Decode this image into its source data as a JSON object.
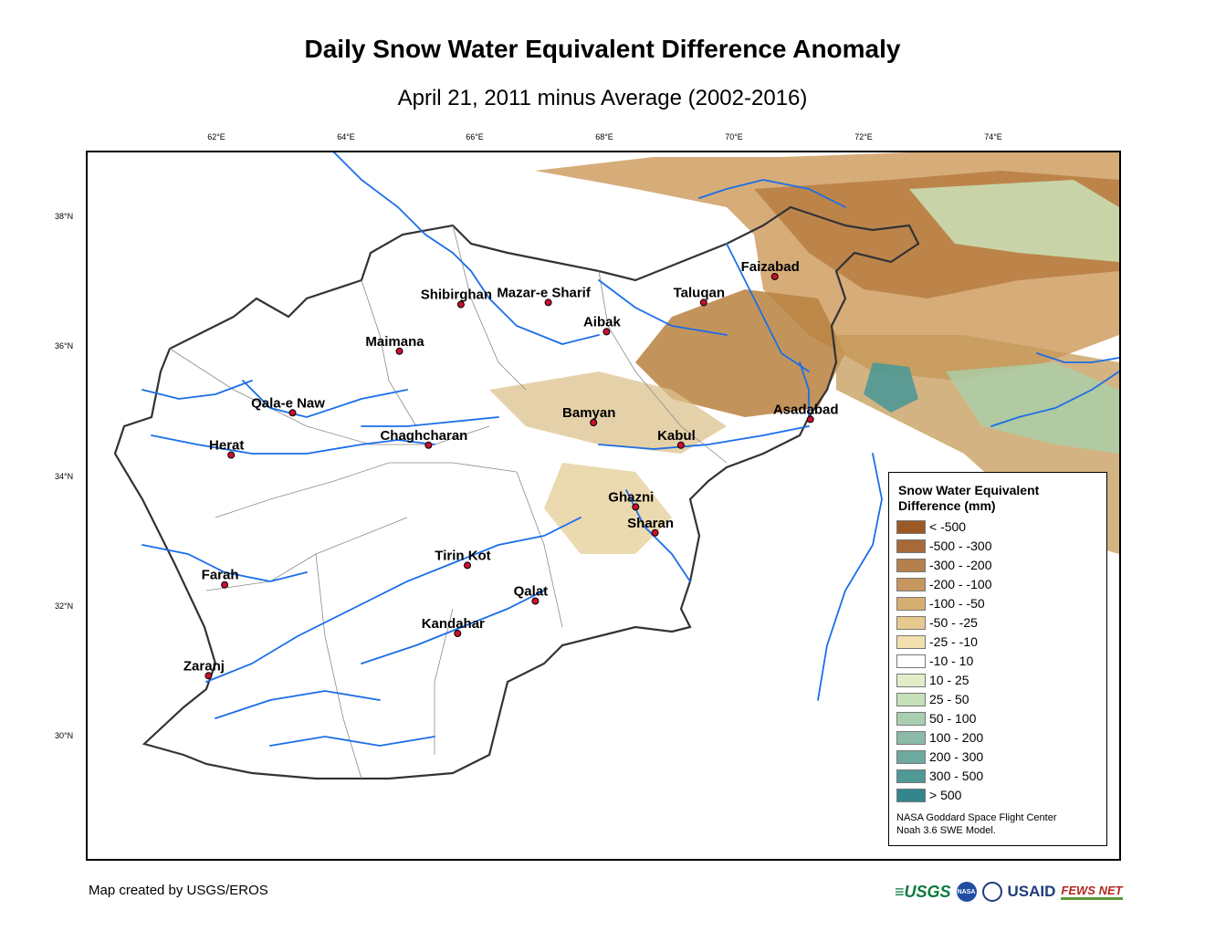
{
  "title": "Daily Snow Water Equivalent Difference Anomaly",
  "subtitle": "April 21, 2011 minus Average (2002-2016)",
  "axes": {
    "longitude_ticks": [
      "62°E",
      "64°E",
      "66°E",
      "68°E",
      "70°E",
      "72°E",
      "74°E"
    ],
    "latitude_ticks": [
      "38°N",
      "36°N",
      "34°N",
      "32°N",
      "30°N"
    ]
  },
  "cities": [
    {
      "name": "Faizabad",
      "lon": 70.6,
      "lat": 37.1
    },
    {
      "name": "Taluqan",
      "lon": 69.5,
      "lat": 36.7
    },
    {
      "name": "Shibirghan",
      "lon": 65.75,
      "lat": 36.67
    },
    {
      "name": "Mazar-e Sharif",
      "lon": 67.1,
      "lat": 36.7
    },
    {
      "name": "Aibak",
      "lon": 68.0,
      "lat": 36.25
    },
    {
      "name": "Maimana",
      "lon": 64.8,
      "lat": 35.95
    },
    {
      "name": "Qala-e Naw",
      "lon": 63.15,
      "lat": 35.0
    },
    {
      "name": "Herat",
      "lon": 62.2,
      "lat": 34.35
    },
    {
      "name": "Chaghcharan",
      "lon": 65.25,
      "lat": 34.5
    },
    {
      "name": "Bamyan",
      "lon": 67.8,
      "lat": 34.85
    },
    {
      "name": "Kabul",
      "lon": 69.15,
      "lat": 34.5
    },
    {
      "name": "Asadabad",
      "lon": 71.15,
      "lat": 34.9
    },
    {
      "name": "Ghazni",
      "lon": 68.45,
      "lat": 33.55
    },
    {
      "name": "Sharan",
      "lon": 68.75,
      "lat": 33.15
    },
    {
      "name": "Tirin Kot",
      "lon": 65.85,
      "lat": 32.65
    },
    {
      "name": "Farah",
      "lon": 62.1,
      "lat": 32.35
    },
    {
      "name": "Qalat",
      "lon": 66.9,
      "lat": 32.1
    },
    {
      "name": "Kandahar",
      "lon": 65.7,
      "lat": 31.6
    },
    {
      "name": "Zaranj",
      "lon": 61.85,
      "lat": 30.95
    }
  ],
  "legend": {
    "title_line1": "Snow Water Equivalent",
    "title_line2": "Difference (mm)",
    "items": [
      {
        "label": "< -500",
        "color": "#9b5a25"
      },
      {
        "label": "-500 - -300",
        "color": "#a8693a"
      },
      {
        "label": "-300 - -200",
        "color": "#b6804e"
      },
      {
        "label": "-200 - -100",
        "color": "#c6965f"
      },
      {
        "label": "-100 - -50",
        "color": "#d7ae72"
      },
      {
        "label": "-50 - -25",
        "color": "#e6c98e"
      },
      {
        "label": "-25 - -10",
        "color": "#f1dfad"
      },
      {
        "label": "-10 - 10",
        "color": "#ffffff"
      },
      {
        "label": "10 - 25",
        "color": "#e2edc7"
      },
      {
        "label": "25 - 50",
        "color": "#c6e0b8"
      },
      {
        "label": "50 - 100",
        "color": "#a9cfb0"
      },
      {
        "label": "100 - 200",
        "color": "#8cbaa8"
      },
      {
        "label": "200 - 300",
        "color": "#6ea99f"
      },
      {
        "label": "300 - 500",
        "color": "#4e9896"
      },
      {
        "label": "> 500",
        "color": "#33868e"
      }
    ],
    "credit_line1": "NASA Goddard Space Flight Center",
    "credit_line2": "Noah 3.6 SWE Model."
  },
  "footer": "Map created by USGS/EROS",
  "logos": {
    "usgs": "≡USGS",
    "nasa": "NASA",
    "usaid": "USAID",
    "fews": "FEWS NET"
  },
  "colors": {
    "river": "#1a6ee8",
    "border": "#333333",
    "city_marker": "#c8102e"
  }
}
